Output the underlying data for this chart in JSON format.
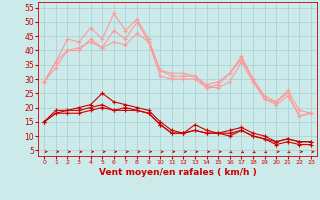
{
  "x": [
    0,
    1,
    2,
    3,
    4,
    5,
    6,
    7,
    8,
    9,
    10,
    11,
    12,
    13,
    14,
    15,
    16,
    17,
    18,
    19,
    20,
    21,
    22,
    23
  ],
  "bg_color": "#cceaea",
  "grid_color": "#aad4d4",
  "line_color_dark": "#cc0000",
  "line_color_light": "#ff9999",
  "xlabel": "Vent moyen/en rafales ( km/h )",
  "yticks": [
    5,
    10,
    15,
    20,
    25,
    30,
    35,
    40,
    45,
    50,
    55
  ],
  "ylim": [
    3,
    57
  ],
  "xlim": [
    -0.5,
    23.5
  ],
  "series_light": [
    [
      29,
      36,
      44,
      43,
      48,
      44,
      53,
      47,
      51,
      44,
      33,
      32,
      32,
      31,
      28,
      29,
      32,
      38,
      30,
      24,
      22,
      26,
      19,
      18
    ],
    [
      29,
      36,
      40,
      40,
      44,
      41,
      47,
      44,
      50,
      43,
      33,
      31,
      31,
      31,
      27,
      28,
      32,
      37,
      30,
      23,
      22,
      25,
      17,
      18
    ],
    [
      29,
      34,
      40,
      41,
      43,
      41,
      43,
      42,
      46,
      43,
      31,
      30,
      30,
      30,
      27,
      27,
      29,
      36,
      29,
      23,
      21,
      24,
      17,
      18
    ]
  ],
  "series_dark": [
    [
      15,
      19,
      19,
      20,
      21,
      25,
      22,
      21,
      20,
      19,
      15,
      12,
      11,
      14,
      12,
      11,
      12,
      13,
      11,
      10,
      8,
      9,
      8,
      8
    ],
    [
      15,
      18,
      19,
      19,
      20,
      21,
      19,
      20,
      19,
      18,
      14,
      11,
      11,
      12,
      11,
      11,
      11,
      12,
      10,
      9,
      8,
      9,
      8,
      8
    ],
    [
      15,
      18,
      18,
      18,
      19,
      20,
      19,
      19,
      19,
      18,
      14,
      11,
      11,
      12,
      11,
      11,
      10,
      12,
      10,
      9,
      7,
      8,
      7,
      7
    ]
  ],
  "wind_dirs": [
    1,
    1,
    1,
    1,
    1,
    1,
    1,
    1,
    1,
    1,
    1,
    1,
    1,
    1,
    1,
    1,
    2,
    2,
    2,
    2,
    1,
    2,
    1,
    1
  ]
}
